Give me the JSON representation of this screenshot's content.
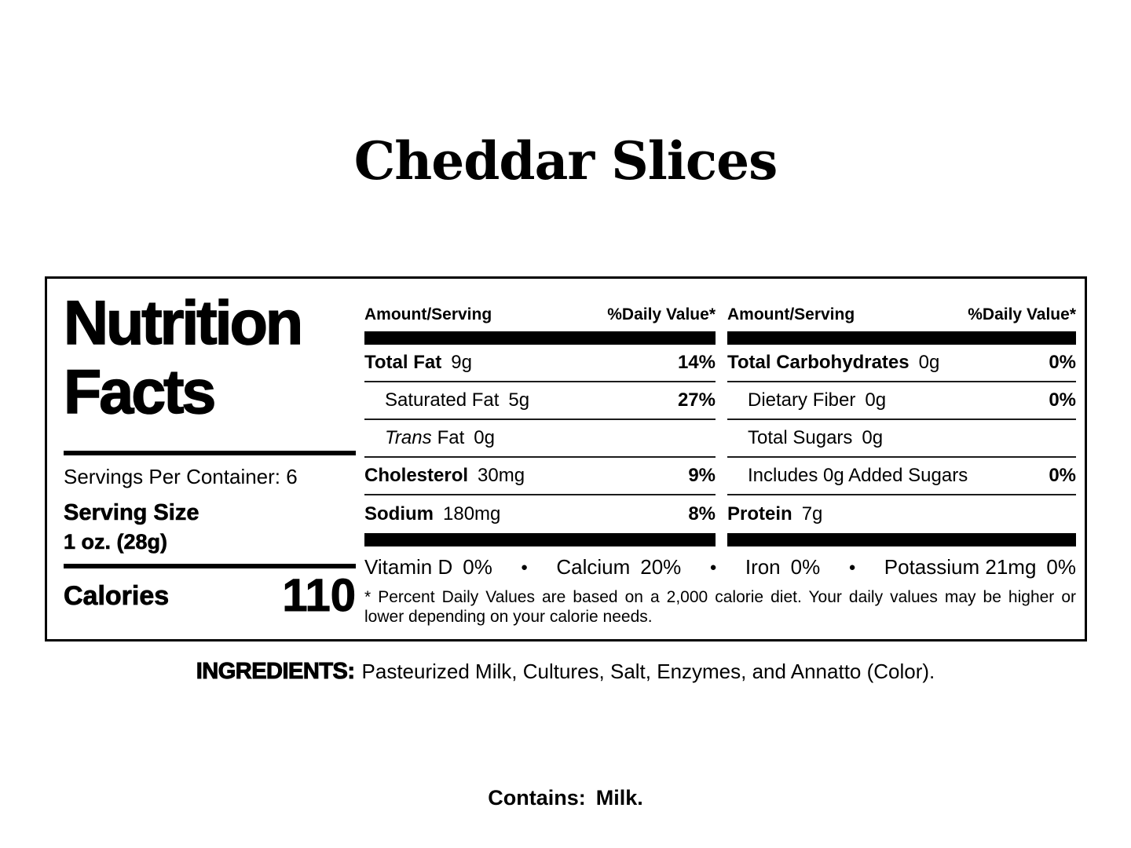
{
  "title": "Cheddar Slices",
  "nutrition": {
    "heading_line1": "Nutrition",
    "heading_line2": "Facts",
    "servings_per_container": "Servings Per Container: 6",
    "serving_size_label": "Serving Size",
    "serving_size_value": "1 oz. (28g)",
    "calories_label": "Calories",
    "calories_value": "110",
    "amount_header": "Amount/Serving",
    "dv_header": "%Daily Value*",
    "cols": [
      {
        "rows": [
          {
            "name": "Total Fat",
            "amount": "9g",
            "dv": "14%"
          },
          {
            "name": "Saturated Fat",
            "amount": "5g",
            "dv": "27%"
          },
          {
            "name_italic": "Trans",
            "name": "Fat",
            "amount": "0g",
            "dv": ""
          },
          {
            "name": "Cholesterol",
            "amount": "30mg",
            "dv": "9%"
          },
          {
            "name": "Sodium",
            "amount": "180mg",
            "dv": "8%"
          }
        ]
      },
      {
        "rows": [
          {
            "name": "Total Carbohydrates",
            "amount": "0g",
            "dv": "0%"
          },
          {
            "name": "Dietary Fiber",
            "amount": "0g",
            "dv": "0%"
          },
          {
            "name": "Total Sugars",
            "amount": "0g",
            "dv": ""
          },
          {
            "name": "Includes 0g Added Sugars",
            "amount": "",
            "dv": "0%"
          },
          {
            "name": "Protein",
            "amount": "7g",
            "dv": ""
          }
        ]
      }
    ],
    "micronutrients": [
      {
        "name": "Vitamin D",
        "value": "0%"
      },
      {
        "name": "Calcium",
        "value": "20%"
      },
      {
        "name": "Iron",
        "value": "0%"
      },
      {
        "name": "Potassium 21mg",
        "value": "0%"
      }
    ],
    "separator": "●",
    "footnote_line1": "* Percent Daily Values are based on a 2,000 calorie diet. Your daily values may be higher or",
    "footnote_line2": "lower depending on your calorie needs."
  },
  "ingredients": {
    "label": "INGREDIENTS:",
    "text": "Pasteurized Milk, Cultures, Salt, Enzymes, and Annatto (Color)."
  },
  "contains": {
    "label": "Contains:",
    "value": "Milk."
  }
}
